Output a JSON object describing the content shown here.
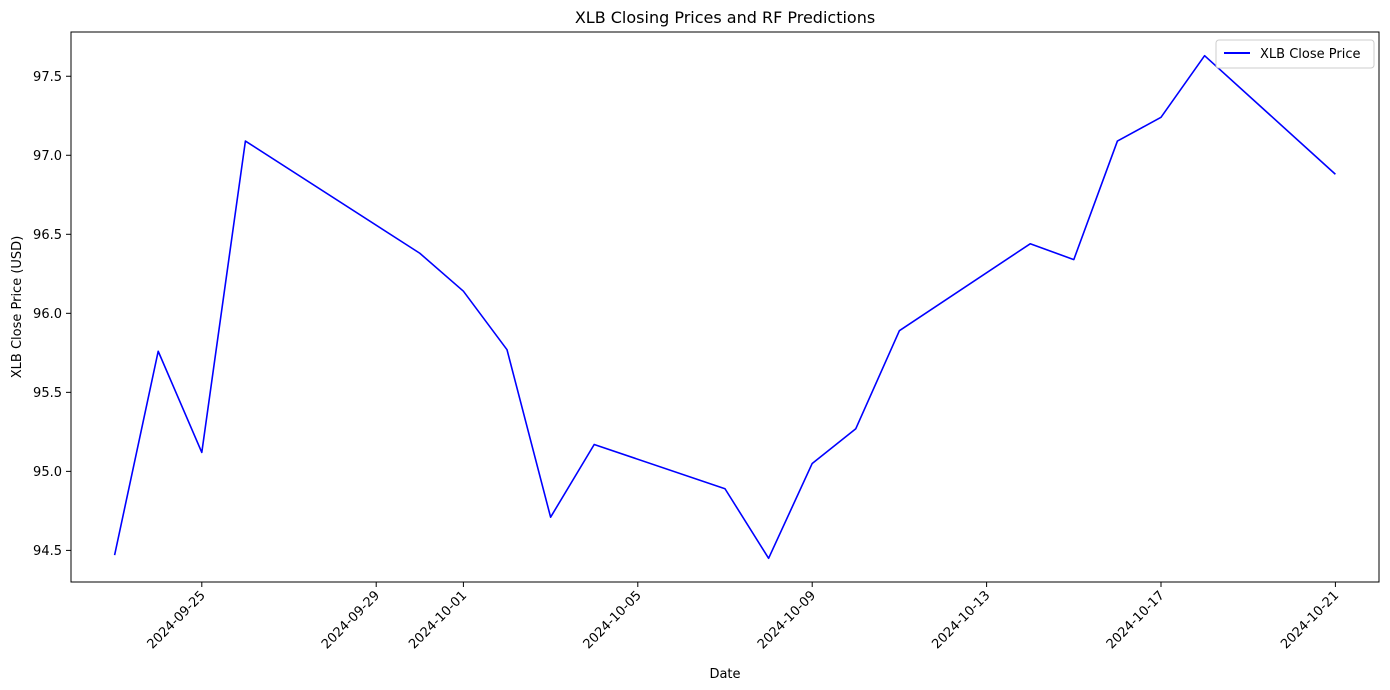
{
  "chart_data": {
    "type": "line",
    "title": "XLB Closing Prices and RF Predictions",
    "xlabel": "Date",
    "ylabel": "XLB Close Price (USD)",
    "xlim": [
      "2024-09-22",
      "2024-10-22"
    ],
    "ylim": [
      94.3,
      97.78
    ],
    "x_ticks": [
      "2024-09-25",
      "2024-09-29",
      "2024-10-01",
      "2024-10-05",
      "2024-10-09",
      "2024-10-13",
      "2024-10-17",
      "2024-10-21"
    ],
    "y_ticks": [
      "94.5",
      "95.0",
      "95.5",
      "96.0",
      "96.5",
      "97.0",
      "97.5"
    ],
    "grid": false,
    "legend": "top-right",
    "series": [
      {
        "name": "XLB Close Price",
        "color": "#0000ff",
        "x": [
          "2024-09-23",
          "2024-09-24",
          "2024-09-25",
          "2024-09-26",
          "2024-09-30",
          "2024-10-01",
          "2024-10-02",
          "2024-10-03",
          "2024-10-04",
          "2024-10-07",
          "2024-10-08",
          "2024-10-09",
          "2024-10-10",
          "2024-10-11",
          "2024-10-14",
          "2024-10-15",
          "2024-10-16",
          "2024-10-17",
          "2024-10-18",
          "2024-10-21"
        ],
        "values": [
          94.47,
          95.76,
          95.12,
          97.09,
          96.38,
          96.14,
          95.77,
          94.71,
          95.17,
          94.89,
          94.45,
          95.05,
          95.27,
          95.89,
          96.44,
          96.34,
          97.09,
          97.24,
          97.63,
          96.88
        ]
      }
    ]
  }
}
